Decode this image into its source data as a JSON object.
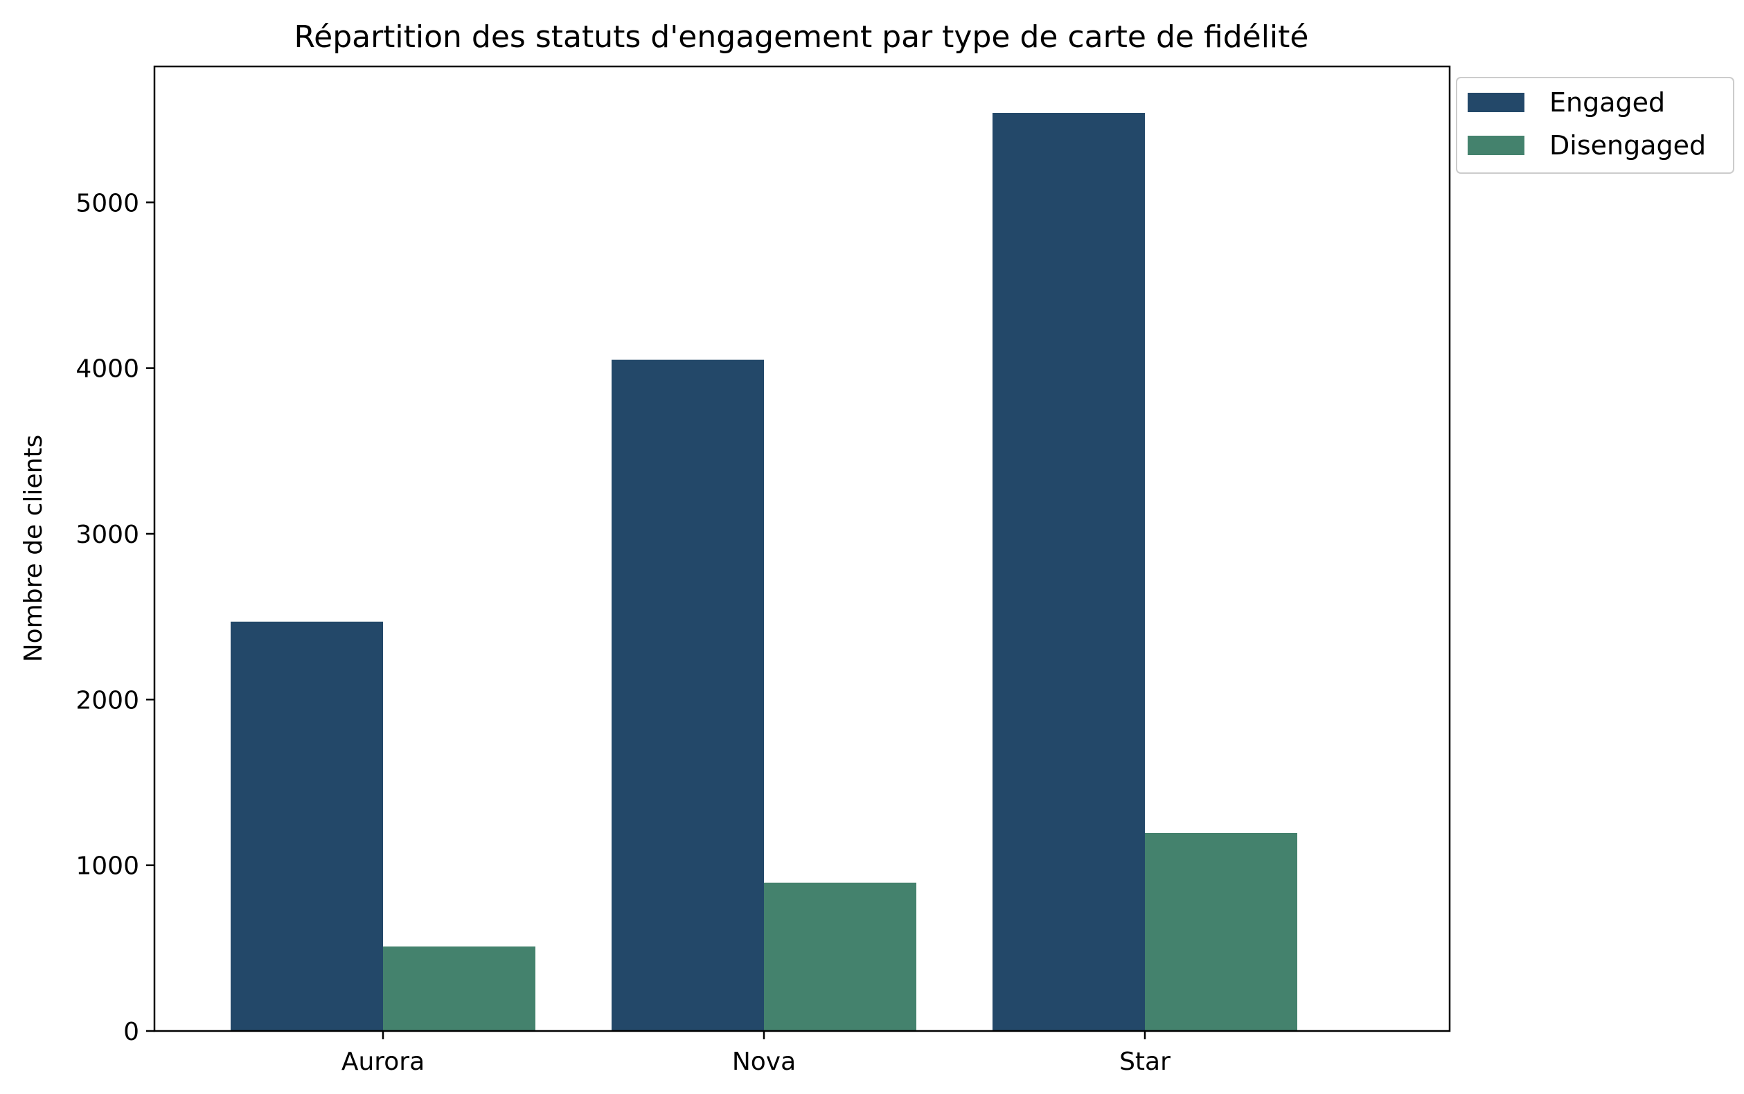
{
  "chart_data": {
    "type": "bar",
    "title": "Répartition des statuts d'engagement par type de carte de fidélité",
    "xlabel": "",
    "ylabel": "Nombre de clients",
    "categories": [
      "Aurora",
      "Nova",
      "Star"
    ],
    "series": [
      {
        "name": "Engaged",
        "values": [
          2470,
          4050,
          5540
        ],
        "color": "#234869"
      },
      {
        "name": "Disengaged",
        "values": [
          510,
          895,
          1195
        ],
        "color": "#44826d"
      }
    ],
    "ylim": [
      0,
      5820
    ],
    "yticks": [
      0,
      1000,
      2000,
      3000,
      4000,
      5000
    ],
    "ytick_labels": [
      "0",
      "1000",
      "2000",
      "3000",
      "4000",
      "5000"
    ],
    "grid": false,
    "legend_position": "outside-top-right"
  }
}
